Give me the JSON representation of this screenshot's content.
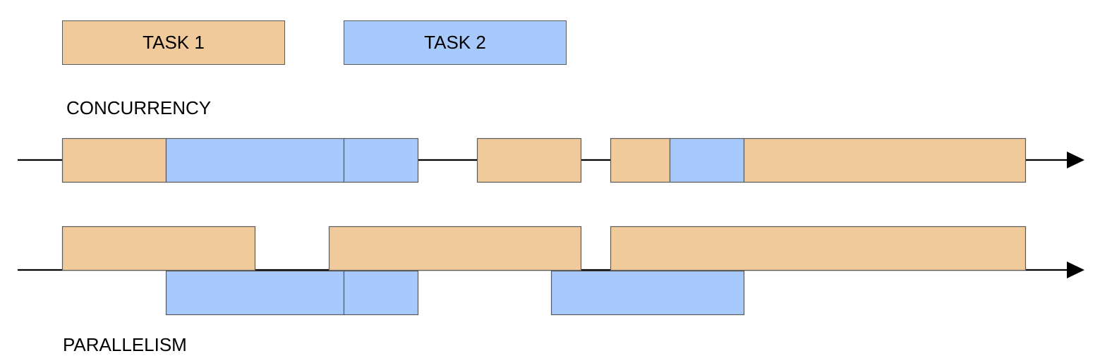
{
  "colors": {
    "task1_fill": "#F0CA9B",
    "task2_fill": "#A7C9FC",
    "stroke": "#5a5a5a",
    "axis": "#000000",
    "background": "#ffffff"
  },
  "legend": {
    "task1_label": "TASK 1",
    "task2_label": "TASK 2"
  },
  "concurrency": {
    "label": "CONCURRENCY",
    "segments": [
      {
        "task": "task1",
        "start": 0,
        "end": 147
      },
      {
        "task": "task2",
        "start": 147,
        "end": 399
      },
      {
        "task": "task2",
        "start": 399,
        "end": 504
      },
      {
        "task": "task1",
        "start": 588,
        "end": 735
      },
      {
        "task": "task1",
        "start": 777,
        "end": 861
      },
      {
        "task": "task2",
        "start": 861,
        "end": 966
      },
      {
        "task": "task1",
        "start": 966,
        "end": 1365
      }
    ]
  },
  "parallelism": {
    "label": "PARALLELISM",
    "segments": [
      {
        "task": "task1",
        "lane": "upper",
        "start": 0,
        "end": 273
      },
      {
        "task": "task1",
        "lane": "upper",
        "start": 378,
        "end": 735
      },
      {
        "task": "task1",
        "lane": "upper",
        "start": 777,
        "end": 1365
      },
      {
        "task": "task2",
        "lane": "lower",
        "start": 147,
        "end": 399
      },
      {
        "task": "task2",
        "lane": "lower",
        "start": 399,
        "end": 504
      },
      {
        "task": "task2",
        "lane": "lower",
        "start": 693,
        "end": 966
      }
    ]
  }
}
